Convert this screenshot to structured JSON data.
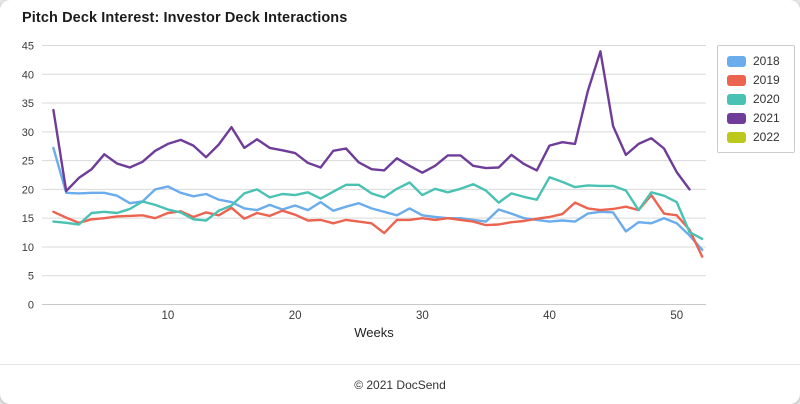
{
  "page": {
    "background": "#e9e9e9",
    "card_background": "#ffffff"
  },
  "footer": {
    "text": "© 2021 DocSend"
  },
  "chart_data": {
    "type": "line",
    "title": "Pitch Deck Interest: Investor Deck Interactions",
    "xlabel": "Weeks",
    "ylabel": "",
    "x_ticks": [
      10,
      20,
      30,
      40,
      50
    ],
    "xlim": [
      0.1,
      52.3
    ],
    "ylim": [
      0,
      45
    ],
    "y_tick_step": 5,
    "grid": "horizontal",
    "grid_color": "#d9d9d9",
    "baseline_color": "#c9c9c9",
    "axis_text_color": "#3a3a3a",
    "legend_position": "top-right",
    "weeks": [
      1,
      2,
      3,
      4,
      5,
      6,
      7,
      8,
      9,
      10,
      11,
      12,
      13,
      14,
      15,
      16,
      17,
      18,
      19,
      20,
      21,
      22,
      23,
      24,
      25,
      26,
      27,
      28,
      29,
      30,
      31,
      32,
      33,
      34,
      35,
      36,
      37,
      38,
      39,
      40,
      41,
      42,
      43,
      44,
      45,
      46,
      47,
      48,
      49,
      50,
      51,
      52
    ],
    "series": [
      {
        "name": "2018",
        "color": "#6aacec",
        "values": [
          27.2,
          19.4,
          19.3,
          19.4,
          19.4,
          18.9,
          17.6,
          17.9,
          20.0,
          20.5,
          19.4,
          18.8,
          19.2,
          18.2,
          17.8,
          16.7,
          16.4,
          17.3,
          16.5,
          17.2,
          16.4,
          17.8,
          16.3,
          17.0,
          17.6,
          16.7,
          16.1,
          15.5,
          16.7,
          15.5,
          15.2,
          15.0,
          15.0,
          14.7,
          14.4,
          16.5,
          15.8,
          15.0,
          14.7,
          14.4,
          14.6,
          14.4,
          15.8,
          16.1,
          16.0,
          12.7,
          14.3,
          14.1,
          15.0,
          14.1,
          12.0,
          9.5
        ]
      },
      {
        "name": "2019",
        "color": "#ec6450",
        "values": [
          16.1,
          15.1,
          14.2,
          14.8,
          15.0,
          15.3,
          15.4,
          15.5,
          15.0,
          15.9,
          16.2,
          15.2,
          16.0,
          15.5,
          16.8,
          14.9,
          15.9,
          15.4,
          16.3,
          15.6,
          14.6,
          14.7,
          14.1,
          14.7,
          14.4,
          14.1,
          12.4,
          14.7,
          14.7,
          15.0,
          14.7,
          15.0,
          14.7,
          14.4,
          13.8,
          13.9,
          14.3,
          14.5,
          14.9,
          15.2,
          15.7,
          17.7,
          16.7,
          16.4,
          16.6,
          17.0,
          16.4,
          19.0,
          15.8,
          15.5,
          13.0,
          8.3
        ]
      },
      {
        "name": "2020",
        "color": "#49c2b4",
        "values": [
          14.4,
          14.2,
          13.9,
          15.9,
          16.1,
          15.9,
          16.6,
          17.9,
          17.3,
          16.5,
          16.0,
          14.8,
          14.6,
          16.3,
          17.2,
          19.3,
          20.0,
          18.6,
          19.2,
          19.0,
          19.5,
          18.4,
          19.6,
          20.8,
          20.8,
          19.3,
          18.6,
          20.1,
          21.2,
          19.0,
          20.1,
          19.5,
          20.1,
          20.9,
          19.8,
          17.7,
          19.3,
          18.7,
          18.2,
          22.1,
          21.3,
          20.4,
          20.7,
          20.6,
          20.6,
          19.8,
          16.4,
          19.5,
          18.9,
          17.8,
          12.6,
          11.4
        ]
      },
      {
        "name": "2021",
        "color": "#6f3d99",
        "values": [
          33.8,
          19.7,
          22.0,
          23.5,
          26.1,
          24.5,
          23.8,
          24.8,
          26.7,
          27.9,
          28.6,
          27.6,
          25.6,
          27.8,
          30.8,
          27.2,
          28.7,
          27.2,
          26.8,
          26.3,
          24.6,
          23.8,
          26.7,
          27.1,
          24.7,
          23.5,
          23.3,
          25.4,
          24.1,
          22.9,
          24.1,
          25.9,
          25.9,
          24.1,
          23.7,
          23.8,
          26.0,
          24.4,
          23.3,
          27.6,
          28.2,
          27.9,
          37.0,
          44.0,
          31.0,
          26.0,
          27.9,
          28.9,
          27.1,
          23.0,
          20.0,
          null
        ]
      },
      {
        "name": "2022",
        "color": "#bdc81d",
        "values": []
      }
    ]
  }
}
